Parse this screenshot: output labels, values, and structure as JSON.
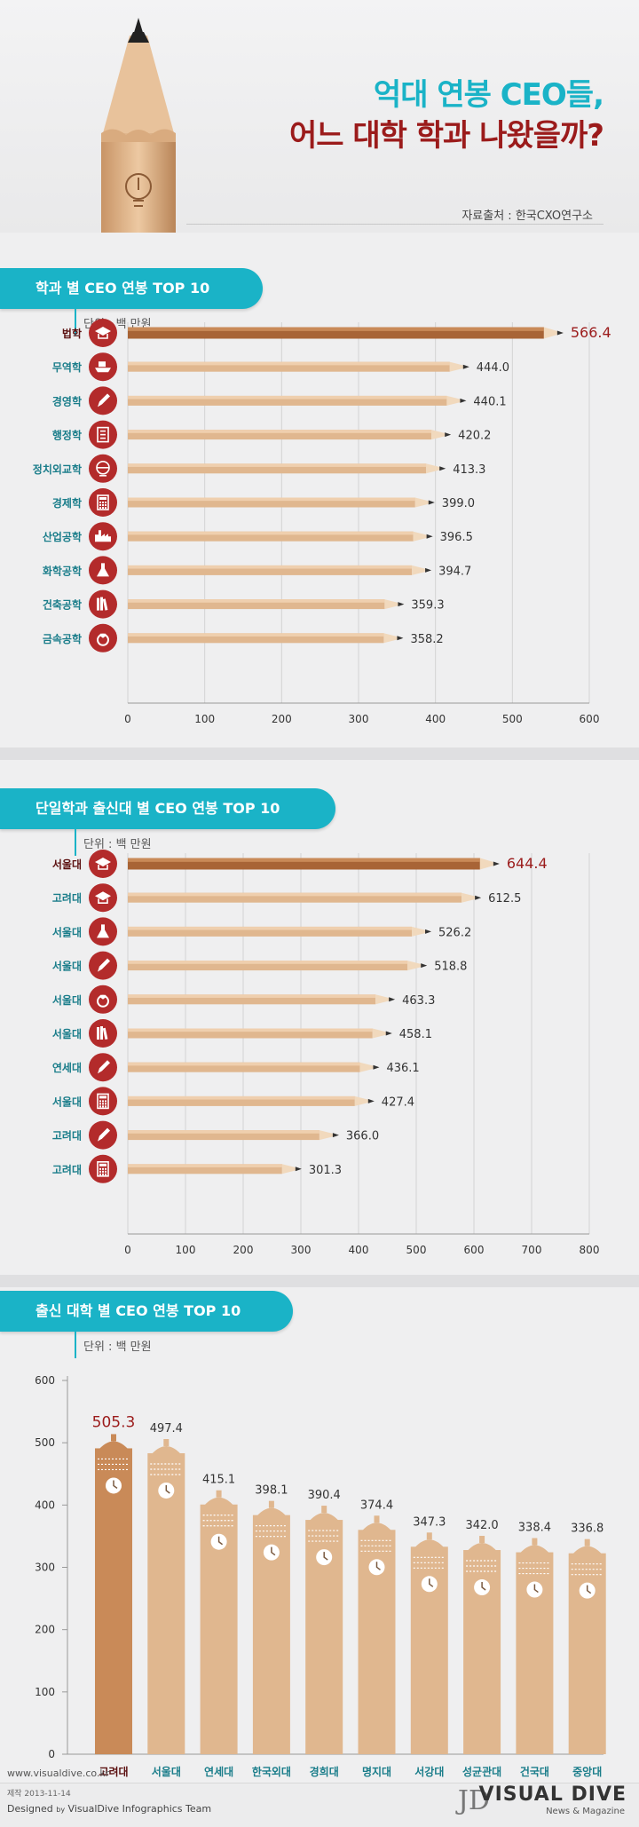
{
  "header": {
    "title_line1": "억대 연봉 CEO들,",
    "title_line2": "어느 대학 학과 나왔을까?",
    "source": "자료출처 : 한국CXO연구소"
  },
  "colors": {
    "accent": "#1ab3c7",
    "highlight": "#9b1b1b",
    "pencil": "#e0b78f",
    "icon": "#b32b2b"
  },
  "sections": {
    "s1": {
      "label": "학과 별 CEO 연봉 TOP 10",
      "unit": "단위 : 백 만원"
    },
    "s2": {
      "label": "단일학과 출신대 별 CEO 연봉 TOP 10",
      "unit": "단위 : 백 만원"
    },
    "s3": {
      "label": "출신 대학 별 CEO 연봉 TOP 10",
      "unit": "단위 : 백 만원"
    }
  },
  "chart_data": [
    {
      "type": "bar",
      "orientation": "horizontal",
      "title": "학과 별 CEO 연봉 TOP 10",
      "categories": [
        "법학",
        "무역학",
        "경영학",
        "행정학",
        "정치외교학",
        "경제학",
        "산업공학",
        "화학공학",
        "건축공학",
        "금속공학"
      ],
      "values": [
        566.4,
        444.0,
        440.1,
        420.2,
        413.3,
        399.0,
        396.5,
        394.7,
        359.3,
        358.2
      ],
      "value_labels": [
        "566.4",
        "444.0",
        "440.1",
        "420.2",
        "413.3",
        "399.0",
        "396.5",
        "394.7",
        "359.3",
        "358.2"
      ],
      "icons": [
        "graduation-cap-icon",
        "ship-icon",
        "pen-icon",
        "document-icon",
        "globe-icon",
        "calculator-icon",
        "factory-icon",
        "flask-icon",
        "books-icon",
        "ring-icon"
      ],
      "xlim": [
        0,
        600
      ],
      "ticks": [
        0,
        100,
        200,
        300,
        400,
        500,
        600
      ],
      "highlight_index": 0
    },
    {
      "type": "bar",
      "orientation": "horizontal",
      "title": "단일학과 출신대 별 CEO 연봉 TOP 10",
      "categories": [
        "서울대",
        "고려대",
        "서울대",
        "서울대",
        "서울대",
        "서울대",
        "연세대",
        "서울대",
        "고려대",
        "고려대"
      ],
      "values": [
        644.4,
        612.5,
        526.2,
        518.8,
        463.3,
        458.1,
        436.1,
        427.4,
        366.0,
        301.3
      ],
      "value_labels": [
        "644.4",
        "612.5",
        "526.2",
        "518.8",
        "463.3",
        "458.1",
        "436.1",
        "427.4",
        "366.0",
        "301.3"
      ],
      "icons": [
        "graduation-cap-icon",
        "graduation-cap-icon",
        "flask-icon",
        "pen-icon",
        "ring-icon",
        "books-icon",
        "pen-icon",
        "calculator-icon",
        "pen-icon",
        "calculator-icon"
      ],
      "xlim": [
        0,
        800
      ],
      "ticks": [
        0,
        100,
        200,
        300,
        400,
        500,
        600,
        700,
        800
      ],
      "highlight_index": 0
    },
    {
      "type": "bar",
      "orientation": "vertical",
      "title": "출신 대학 별 CEO 연봉 TOP 10",
      "categories": [
        "고려대",
        "서울대",
        "연세대",
        "한국외대",
        "경희대",
        "명지대",
        "서강대",
        "성균관대",
        "건국대",
        "중앙대"
      ],
      "values": [
        505.3,
        497.4,
        415.1,
        398.1,
        390.4,
        374.4,
        347.3,
        342.0,
        338.4,
        336.8
      ],
      "value_labels": [
        "505.3",
        "497.4",
        "415.1",
        "398.1",
        "390.4",
        "374.4",
        "347.3",
        "342.0",
        "338.4",
        "336.8"
      ],
      "ylim": [
        0,
        600
      ],
      "ticks": [
        0,
        100,
        200,
        300,
        400,
        500,
        600
      ],
      "highlight_index": 0
    }
  ],
  "footer": {
    "url": "www.visualdive.co.kr",
    "date": "제작 2013-11-14",
    "designed_prefix": "Designed",
    "designed_by": "by",
    "designed_team": "VisualDive Infographics Team",
    "brand": "VISUAL DIVE",
    "brand_sub": "News & Magazine",
    "logo": "JD"
  }
}
